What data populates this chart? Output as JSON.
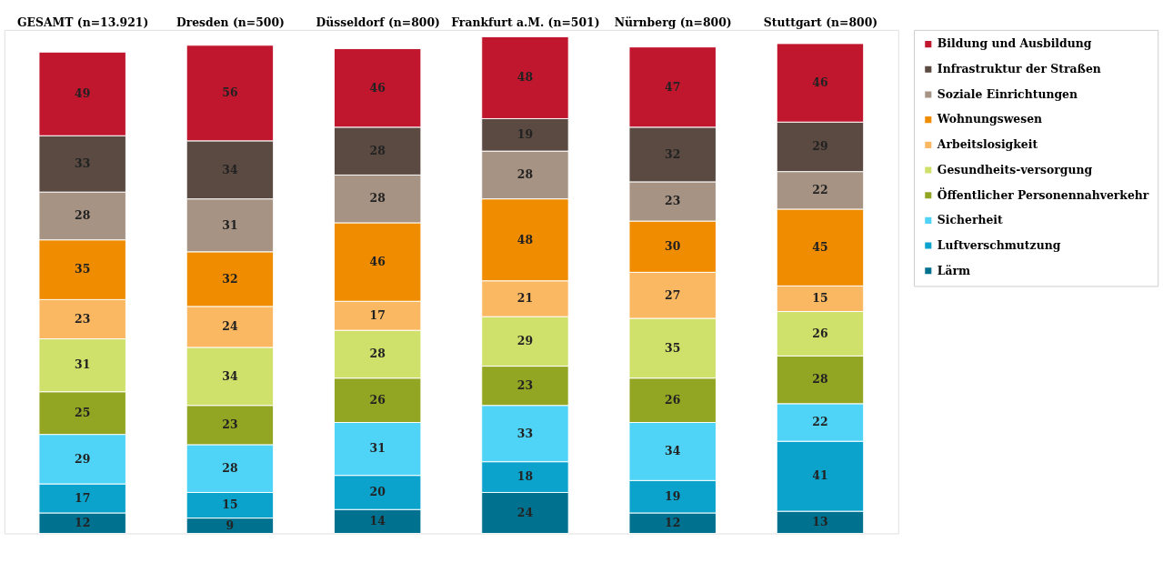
{
  "chart_data": {
    "type": "bar",
    "stacked": true,
    "data_labels": true,
    "legend": "right",
    "tick_labels": "x",
    "categories": [
      "GESAMT (n=13.921)",
      "Dresden (n=500)",
      "Düsseldorf (n=800)",
      "Frankfurt a.M. (n=501)",
      "Nürnberg (n=800)",
      "Stuttgart (n=800)"
    ],
    "ylim": [
      0,
      295
    ],
    "series": [
      {
        "name": "Lärm",
        "color": "#00718f",
        "values": [
          12,
          9,
          14,
          24,
          12,
          13
        ]
      },
      {
        "name": "Luftverschmutzung",
        "color": "#0ba3cc",
        "values": [
          17,
          15,
          20,
          18,
          19,
          41
        ]
      },
      {
        "name": "Sicherheit",
        "color": "#4fd3f7",
        "values": [
          29,
          28,
          31,
          33,
          34,
          22
        ]
      },
      {
        "name": "Öffentlicher Personennahverkehr",
        "color": "#93a624",
        "values": [
          25,
          23,
          26,
          23,
          26,
          28
        ]
      },
      {
        "name": "Gesundheits-versorgung",
        "color": "#cfe16a",
        "values": [
          31,
          34,
          28,
          29,
          35,
          26
        ]
      },
      {
        "name": "Arbeitslosigkeit",
        "color": "#fbb862",
        "values": [
          23,
          24,
          17,
          21,
          27,
          15
        ]
      },
      {
        "name": "Wohnungswesen",
        "color": "#f08c00",
        "values": [
          35,
          32,
          46,
          48,
          30,
          45
        ]
      },
      {
        "name": "Soziale Einrichtungen",
        "color": "#a69383",
        "values": [
          28,
          31,
          28,
          28,
          23,
          22
        ]
      },
      {
        "name": "Infrastruktur der Straßen",
        "color": "#5a4a42",
        "values": [
          33,
          34,
          28,
          19,
          32,
          29
        ]
      },
      {
        "name": "Bildung und Ausbildung",
        "color": "#c0172f",
        "values": [
          49,
          56,
          46,
          48,
          47,
          46
        ]
      }
    ]
  }
}
